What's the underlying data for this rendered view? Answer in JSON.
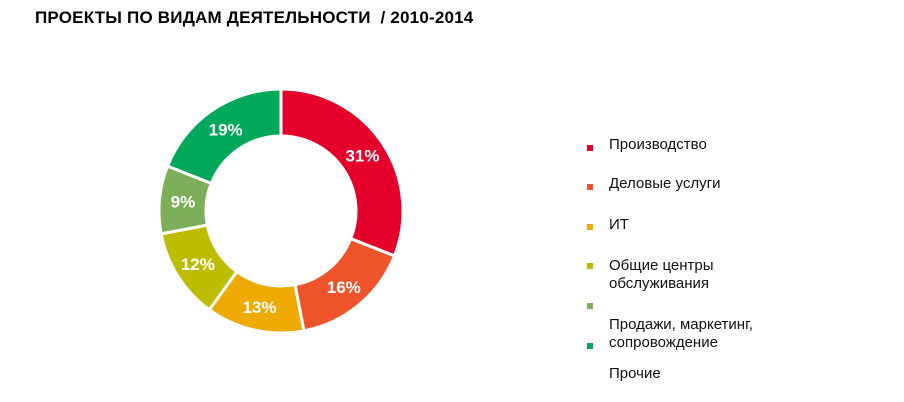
{
  "chart_data": {
    "type": "pie",
    "title": "ПРОЕКТЫ ПО ВИДАМ ДЕЯТЕЛЬНОСТИ  / 2010-2014",
    "categories": [
      "Производство",
      "Деловые услуги",
      "ИТ",
      "Общие центры обслуживания",
      "Продажи, маркетинг, сопровождение",
      "Прочие"
    ],
    "values": [
      31,
      16,
      13,
      12,
      9,
      19
    ],
    "labels": [
      "31%",
      "16%",
      "13%",
      "12%",
      "9%",
      "19%"
    ],
    "colors": [
      "#E4002B",
      "#EF532A",
      "#EFAA00",
      "#BDBC00",
      "#7DAF5B",
      "#00A85A"
    ],
    "legend_lines": [
      "Производство",
      "Деловые услуги",
      "ИТ",
      "Общие центры",
      "обслуживания",
      "Продажи, маркетинг,",
      "сопровождение",
      "Прочие"
    ],
    "legend_position": "right"
  }
}
